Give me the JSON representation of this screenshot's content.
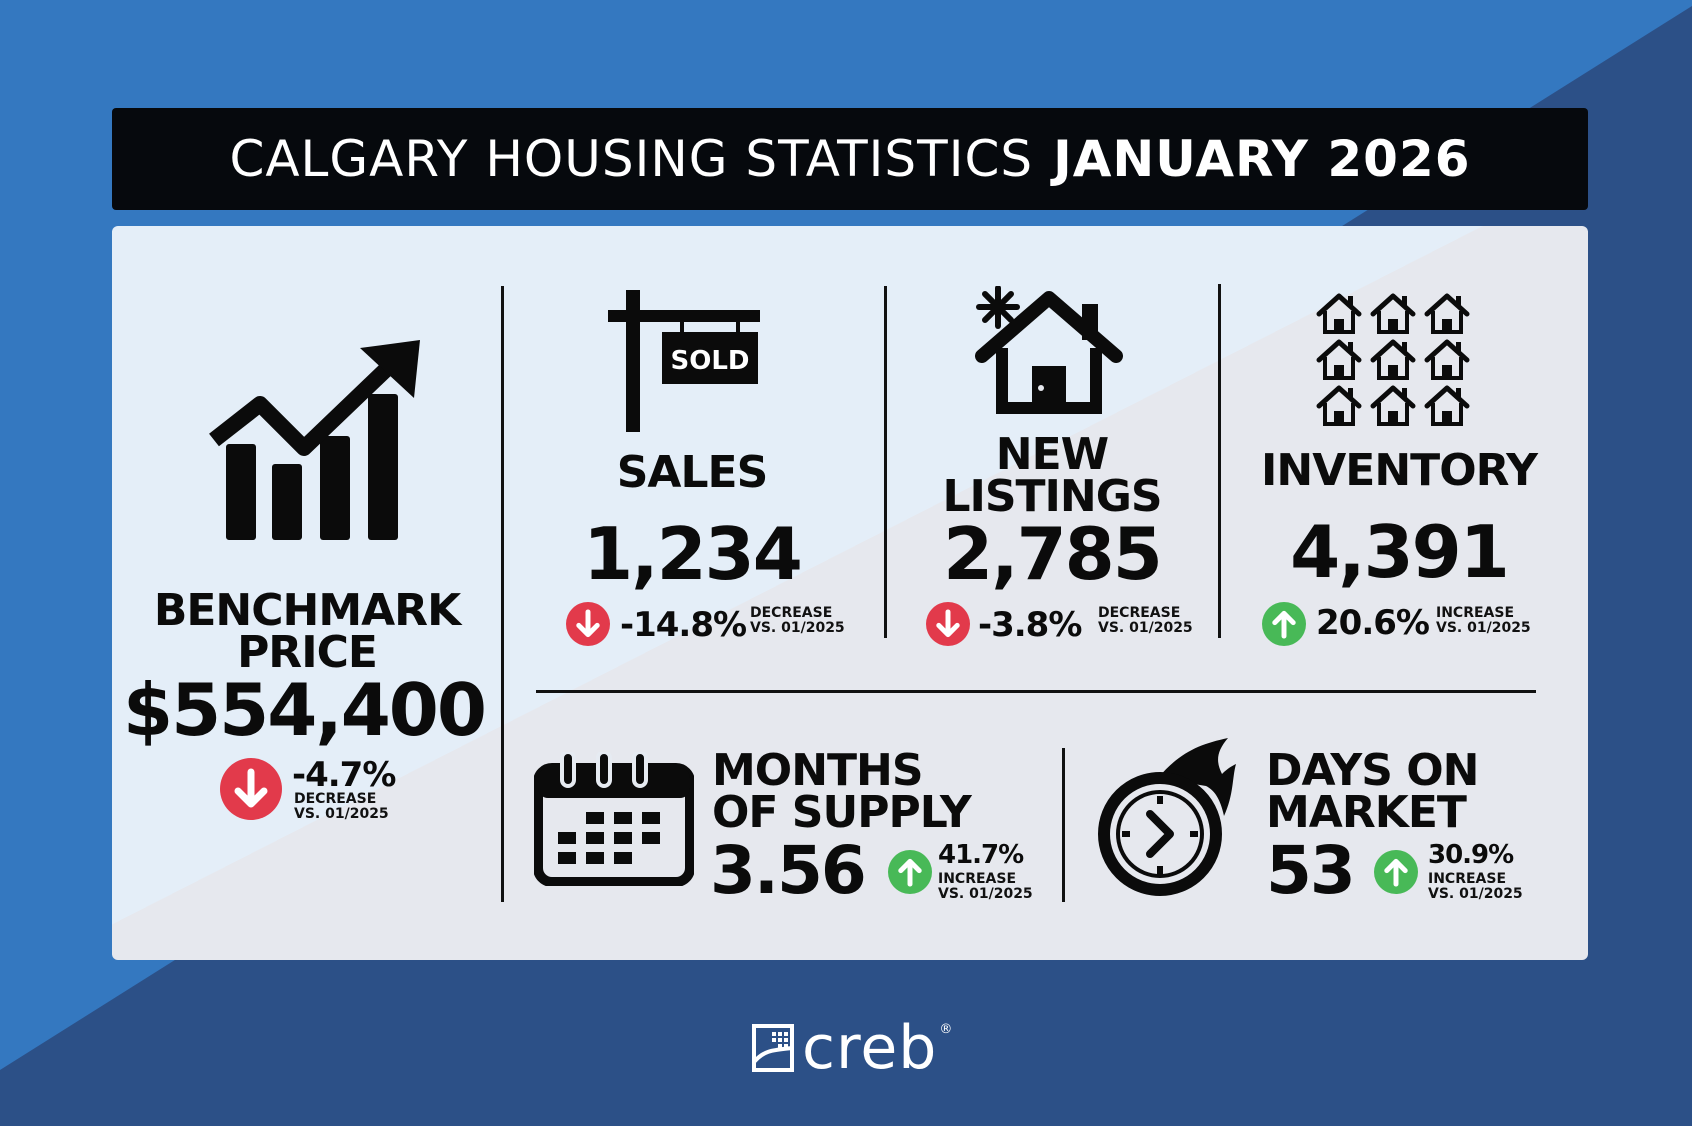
{
  "colors": {
    "background_dark": "#2c5087",
    "background_light": "#3478c0",
    "title_bar": "#06090d",
    "decrease": "#e23a4b",
    "increase": "#48b957"
  },
  "title": {
    "main": "CALGARY HOUSING STATISTICS",
    "period": "JANUARY 2026"
  },
  "benchmark": {
    "label_line1": "BENCHMARK",
    "label_line2": "PRICE",
    "value": "$554,400",
    "change": "-4.7%",
    "direction_icon": "arrow-down-icon",
    "note_line1": "DECREASE",
    "note_line2": "VS. 01/2025"
  },
  "sales": {
    "sign_text": "SOLD",
    "label": "SALES",
    "value": "1,234",
    "change": "-14.8%",
    "direction_icon": "arrow-down-icon",
    "note_line1": "DECREASE",
    "note_line2": "VS. 01/2025"
  },
  "new_listings": {
    "label_line1": "NEW",
    "label_line2": "LISTINGS",
    "value": "2,785",
    "change": "-3.8%",
    "direction_icon": "arrow-down-icon",
    "note_line1": "DECREASE",
    "note_line2": "VS. 01/2025"
  },
  "inventory": {
    "label": "INVENTORY",
    "value": "4,391",
    "change": "20.6%",
    "direction_icon": "arrow-up-icon",
    "note_line1": "INCREASE",
    "note_line2": "VS. 01/2025"
  },
  "months_of_supply": {
    "label_line1": "MONTHS",
    "label_line2": "OF SUPPLY",
    "value": "3.56",
    "change": "41.7%",
    "direction_icon": "arrow-up-icon",
    "note_line1": "INCREASE",
    "note_line2": "VS. 01/2025"
  },
  "days_on_market": {
    "label_line1": "DAYS ON",
    "label_line2": "MARKET",
    "value": "53",
    "change": "30.9%",
    "direction_icon": "arrow-up-icon",
    "note_line1": "INCREASE",
    "note_line2": "VS. 01/2025"
  },
  "logo": {
    "text": "creb",
    "reg": "®",
    "icon": "creb-building-icon"
  }
}
